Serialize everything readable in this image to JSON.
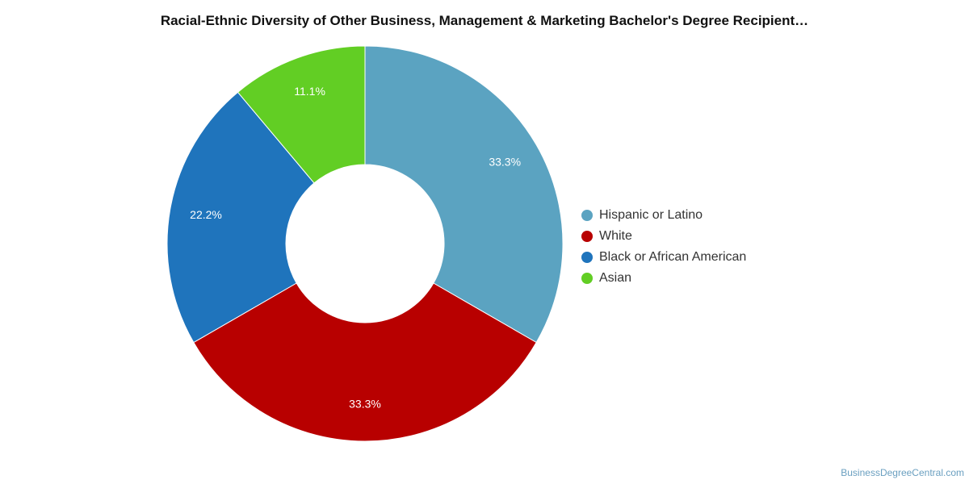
{
  "chart_data": {
    "type": "pie",
    "title": "Racial-Ethnic Diversity of Other Business, Management & Marketing Bachelor's Degree Recipient…",
    "donut": true,
    "legend_position": "right",
    "slices": [
      {
        "name": "Hispanic or Latino",
        "value": 33.3,
        "label": "33.3%",
        "color": "#5ba3c1"
      },
      {
        "name": "White",
        "value": 33.3,
        "label": "33.3%",
        "color": "#b80000"
      },
      {
        "name": "Black or African American",
        "value": 22.2,
        "label": "22.2%",
        "color": "#1f74bc"
      },
      {
        "name": "Asian",
        "value": 11.1,
        "label": "11.1%",
        "color": "#62ce24"
      }
    ]
  },
  "source": "BusinessDegreeCentral.com"
}
